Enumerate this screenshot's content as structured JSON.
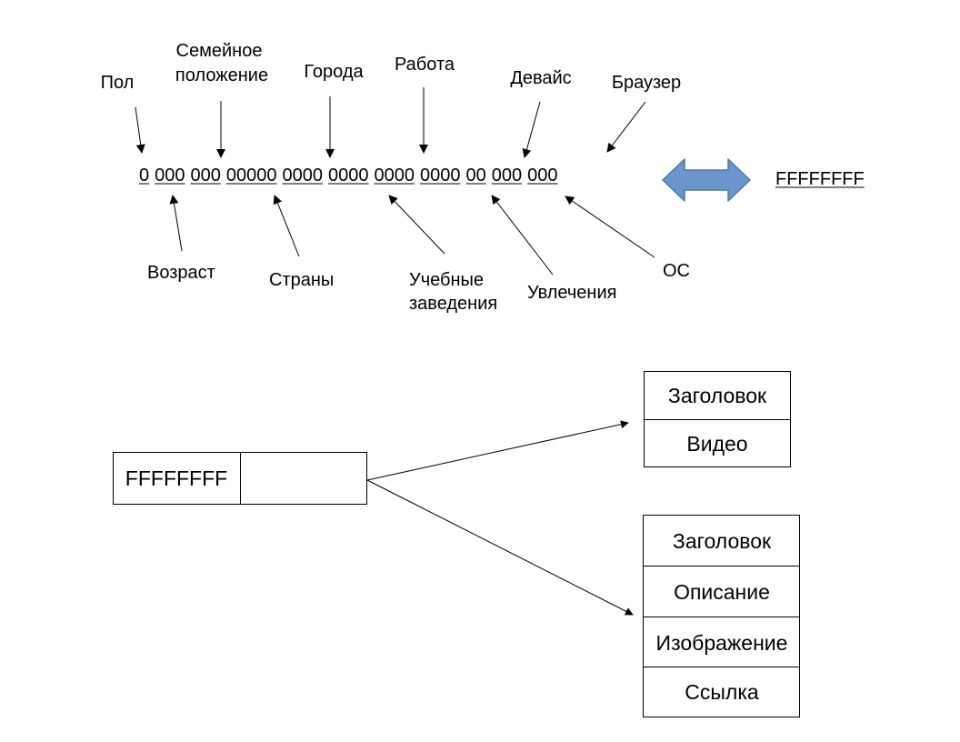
{
  "colors": {
    "ink": "#000000",
    "double_arrow_fill": "#6a96cc",
    "double_arrow_stroke": "#4f79ad"
  },
  "bitmask": {
    "segments": [
      "0",
      "000",
      "000",
      "00000",
      "0000",
      "0000",
      "0000",
      "0000",
      "00",
      "000",
      "000"
    ],
    "hex_value": "FFFFFFFF"
  },
  "labels_top": [
    {
      "lines": [
        "Пол"
      ]
    },
    {
      "lines": [
        "Семейное",
        "положение"
      ]
    },
    {
      "lines": [
        "Города"
      ]
    },
    {
      "lines": [
        "Работа"
      ]
    },
    {
      "lines": [
        "Девайс"
      ]
    },
    {
      "lines": [
        "Браузер"
      ]
    }
  ],
  "labels_bottom": [
    {
      "lines": [
        "Возраст"
      ]
    },
    {
      "lines": [
        "Страны"
      ]
    },
    {
      "lines": [
        "Учебные",
        "заведения"
      ]
    },
    {
      "lines": [
        "Увлечения"
      ]
    },
    {
      "lines": [
        "ОС"
      ]
    }
  ],
  "key_box": {
    "key": "FFFFFFFF",
    "value": ""
  },
  "record_video": {
    "fields": [
      "Заголовок",
      "Видео"
    ]
  },
  "record_image": {
    "fields": [
      "Заголовок",
      "Описание",
      "Изображение",
      "Ссылка"
    ]
  }
}
